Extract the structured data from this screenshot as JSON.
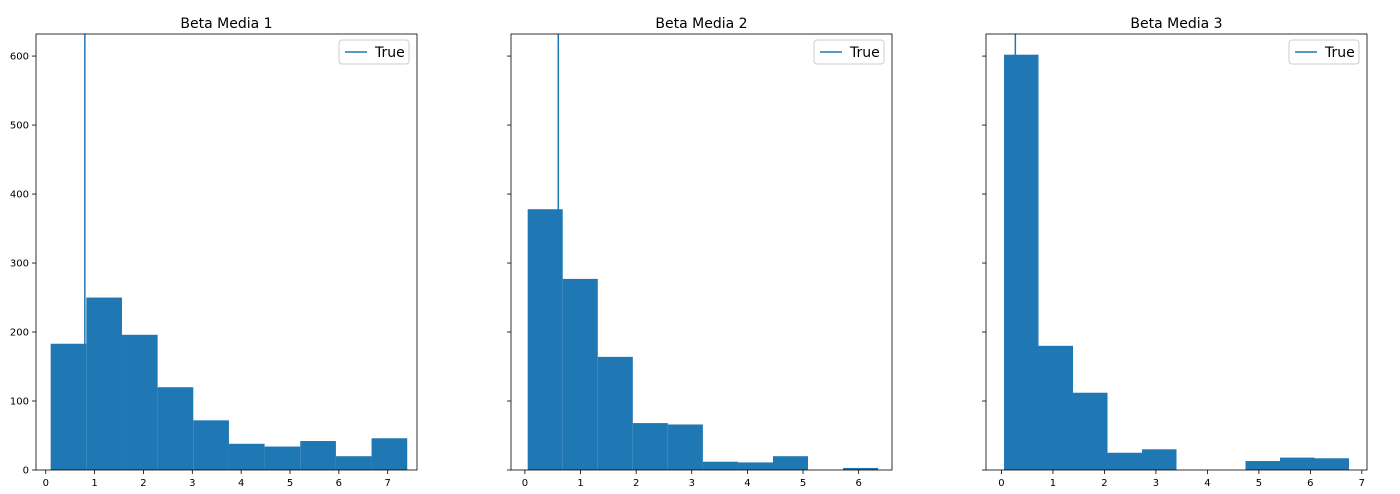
{
  "colors": {
    "bar": "#1f77b4",
    "true_line": "#1f77b4",
    "axis": "#000000",
    "background": "#ffffff",
    "legend_border": "#cccccc"
  },
  "chart_data": [
    {
      "type": "bar",
      "title": "Beta Media 1",
      "xlabel": "",
      "ylabel": "",
      "xlim": [
        -0.2,
        7.6
      ],
      "ylim": [
        0,
        632
      ],
      "xticks": [
        0,
        1,
        2,
        3,
        4,
        5,
        6,
        7
      ],
      "yticks": [
        0,
        100,
        200,
        300,
        400,
        500,
        600
      ],
      "show_y_tick_labels": true,
      "grid": false,
      "legend": {
        "entries": [
          "True"
        ],
        "location": "upper right"
      },
      "bin_edges": [
        0.1,
        0.83,
        1.56,
        2.29,
        3.02,
        3.75,
        4.48,
        5.21,
        5.94,
        6.67,
        7.4
      ],
      "counts": [
        183,
        250,
        196,
        120,
        72,
        38,
        34,
        42,
        20,
        46
      ],
      "true_value": 0.8
    },
    {
      "type": "bar",
      "title": "Beta Media 2",
      "xlabel": "",
      "ylabel": "",
      "xlim": [
        -0.25,
        6.6
      ],
      "ylim": [
        0,
        632
      ],
      "xticks": [
        0,
        1,
        2,
        3,
        4,
        5,
        6
      ],
      "yticks": [
        0,
        100,
        200,
        300,
        400,
        500,
        600
      ],
      "show_y_tick_labels": false,
      "grid": false,
      "legend": {
        "entries": [
          "True"
        ],
        "location": "upper right"
      },
      "bin_edges": [
        0.05,
        0.68,
        1.31,
        1.94,
        2.57,
        3.2,
        3.83,
        4.46,
        5.09,
        5.72,
        6.35
      ],
      "counts": [
        378,
        277,
        164,
        68,
        66,
        12,
        11,
        20,
        0,
        3
      ],
      "true_value": 0.6
    },
    {
      "type": "bar",
      "title": "Beta Media 3",
      "xlabel": "",
      "ylabel": "",
      "xlim": [
        -0.3,
        7.1
      ],
      "ylim": [
        0,
        632
      ],
      "xticks": [
        0,
        1,
        2,
        3,
        4,
        5,
        6,
        7
      ],
      "yticks": [
        0,
        100,
        200,
        300,
        400,
        500,
        600
      ],
      "show_y_tick_labels": false,
      "grid": false,
      "legend": {
        "entries": [
          "True"
        ],
        "location": "upper right"
      },
      "bin_edges": [
        0.05,
        0.72,
        1.39,
        2.06,
        2.73,
        3.4,
        4.07,
        4.74,
        5.41,
        6.08,
        6.75
      ],
      "counts": [
        602,
        180,
        112,
        25,
        30,
        0,
        0,
        13,
        18,
        17
      ],
      "true_value": 0.27
    }
  ]
}
